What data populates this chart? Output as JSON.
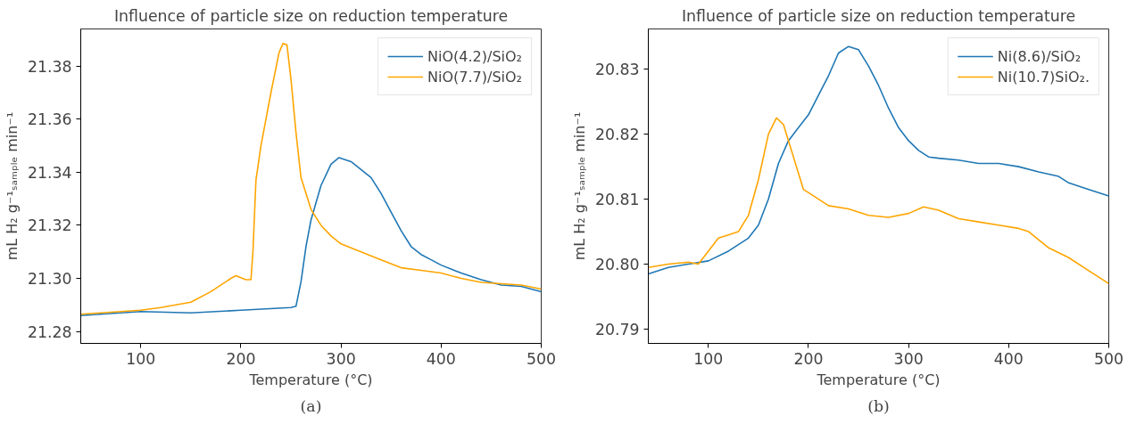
{
  "chart_data": [
    {
      "type": "line",
      "title": "Influence of particle size on reduction temperature",
      "xlabel": "Temperature (°C)",
      "ylabel": "mL H₂ g⁻¹ₛₐₘₚₗₑ min⁻¹",
      "annotations": [
        "(a)"
      ],
      "xlim": [
        40,
        500
      ],
      "xticks": [
        100,
        200,
        300,
        400,
        500
      ],
      "ylim": [
        21.2755,
        21.394
      ],
      "yticks": [
        21.28,
        {
          "value": 21.3,
          "label": "21.30"
        },
        21.32,
        21.34,
        21.36,
        21.38
      ],
      "grid": false,
      "legend": "top right",
      "line_style": "solid",
      "series": [
        {
          "name": "NiO(4.2)/SiO₂",
          "color": "#1f77b4",
          "x": [
            40,
            100,
            150,
            200,
            250,
            255,
            260,
            265,
            270,
            280,
            290,
            298,
            310,
            320,
            330,
            340,
            350,
            360,
            370,
            380,
            390,
            400,
            420,
            440,
            460,
            480,
            500
          ],
          "values": [
            21.286,
            21.2875,
            21.287,
            21.288,
            21.289,
            21.2895,
            21.2987,
            21.312,
            21.322,
            21.335,
            21.343,
            21.3455,
            21.344,
            21.341,
            21.338,
            21.332,
            21.325,
            21.318,
            21.312,
            21.309,
            21.307,
            21.305,
            21.302,
            21.2995,
            21.2975,
            21.297,
            21.295
          ]
        },
        {
          "name": "NiO(7.7)/SiO₂",
          "color": "#ffa500",
          "x": [
            40,
            100,
            120,
            150,
            170,
            190,
            195,
            205,
            210,
            212,
            215,
            220,
            230,
            238,
            242,
            246,
            250,
            255,
            260,
            270,
            280,
            290,
            300,
            320,
            340,
            360,
            380,
            400,
            420,
            440,
            460,
            480,
            500
          ],
          "values": [
            21.2865,
            21.288,
            21.289,
            21.291,
            21.295,
            21.3,
            21.301,
            21.2995,
            21.2995,
            21.31,
            21.337,
            21.35,
            21.37,
            21.385,
            21.3885,
            21.388,
            21.375,
            21.355,
            21.338,
            21.326,
            21.32,
            21.316,
            21.313,
            21.31,
            21.307,
            21.304,
            21.303,
            21.302,
            21.3,
            21.2985,
            21.298,
            21.2975,
            21.296
          ]
        }
      ]
    },
    {
      "type": "line",
      "title": "Influence of particle size on reduction temperature",
      "xlabel": "Temperature (°C)",
      "ylabel": "mL H₂ g⁻¹ₛₐₘₚₗₑ min⁻¹",
      "annotations": [
        "(b)"
      ],
      "xlim": [
        40,
        500
      ],
      "xticks": [
        100,
        200,
        300,
        400,
        500
      ],
      "ylim": [
        20.7878,
        20.8362
      ],
      "yticks": [
        20.79,
        {
          "value": 20.8,
          "label": "20.80"
        },
        20.81,
        20.82,
        20.83
      ],
      "grid": false,
      "legend": "top right",
      "line_style": "solid",
      "series": [
        {
          "name": "Ni(8.6)/SiO₂",
          "color": "#1f77b4",
          "x": [
            40,
            60,
            80,
            100,
            120,
            140,
            150,
            160,
            170,
            180,
            190,
            200,
            210,
            220,
            230,
            240,
            250,
            260,
            270,
            280,
            290,
            300,
            310,
            320,
            330,
            350,
            370,
            390,
            410,
            430,
            450,
            460,
            480,
            500
          ],
          "values": [
            20.7985,
            20.7995,
            20.8,
            20.8005,
            20.802,
            20.804,
            20.806,
            20.81,
            20.8155,
            20.819,
            20.821,
            20.823,
            20.826,
            20.829,
            20.8325,
            20.8335,
            20.833,
            20.8305,
            20.8275,
            20.824,
            20.821,
            20.819,
            20.8175,
            20.8165,
            20.8163,
            20.816,
            20.8155,
            20.8155,
            20.815,
            20.8142,
            20.8135,
            20.8125,
            20.8115,
            20.8105
          ]
        },
        {
          "name": "Ni(10.7)SiO₂.",
          "color": "#ffa500",
          "x": [
            40,
            60,
            80,
            90,
            100,
            110,
            120,
            130,
            140,
            150,
            160,
            168,
            175,
            185,
            195,
            205,
            220,
            240,
            260,
            280,
            300,
            315,
            330,
            350,
            370,
            390,
            410,
            420,
            440,
            460,
            480,
            500
          ],
          "values": [
            20.7995,
            20.8,
            20.8003,
            20.8,
            20.802,
            20.804,
            20.8045,
            20.805,
            20.8075,
            20.813,
            20.82,
            20.8225,
            20.8215,
            20.8165,
            20.8115,
            20.8105,
            20.809,
            20.8085,
            20.8075,
            20.8072,
            20.8078,
            20.8088,
            20.8083,
            20.807,
            20.8065,
            20.806,
            20.8055,
            20.805,
            20.8025,
            20.801,
            20.799,
            20.797
          ]
        }
      ]
    }
  ]
}
